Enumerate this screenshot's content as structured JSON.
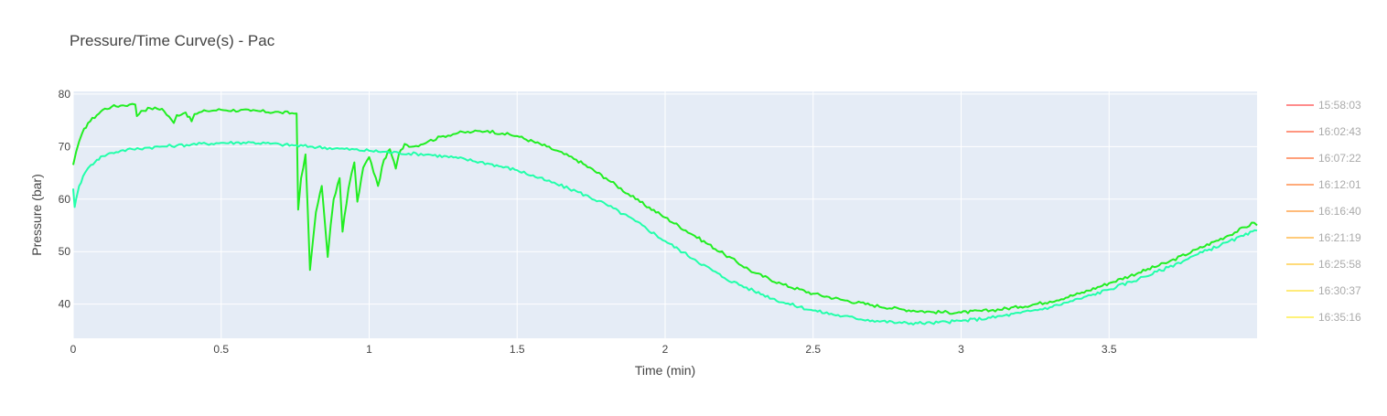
{
  "chart_data": {
    "type": "line",
    "title": "Pressure/Time Curve(s) - Pac",
    "xlabel": "Time (min)",
    "ylabel": "Pressure (bar)",
    "xlim": [
      0,
      4.0
    ],
    "ylim": [
      33.5,
      80.5
    ],
    "x_ticks": [
      0,
      0.5,
      1,
      1.5,
      2,
      2.5,
      3,
      3.5
    ],
    "x_tick_labels": [
      "0",
      "0.5",
      "1",
      "1.5",
      "2",
      "2.5",
      "3",
      "3.5"
    ],
    "y_ticks": [
      40,
      50,
      60,
      70,
      80
    ],
    "y_tick_labels": [
      "40",
      "50",
      "60",
      "70",
      "80"
    ],
    "grid": true,
    "legend_position": "right",
    "legend": [
      {
        "label": "15:58:03",
        "color": "#ff8c8c"
      },
      {
        "label": "16:02:43",
        "color": "#ff9680"
      },
      {
        "label": "16:07:22",
        "color": "#ffa07a"
      },
      {
        "label": "16:12:01",
        "color": "#ffab7a"
      },
      {
        "label": "16:16:40",
        "color": "#ffbb7a"
      },
      {
        "label": "16:21:19",
        "color": "#ffcb7a"
      },
      {
        "label": "16:25:58",
        "color": "#ffdb7a"
      },
      {
        "label": "16:30:37",
        "color": "#ffeb7a"
      },
      {
        "label": "16:35:16",
        "color": "#fff27a"
      }
    ],
    "series": [
      {
        "color": "#22ee22",
        "x": [
          0,
          0.01,
          0.03,
          0.05,
          0.08,
          0.1,
          0.13,
          0.16,
          0.19,
          0.21,
          0.215,
          0.23,
          0.26,
          0.3,
          0.34,
          0.35,
          0.38,
          0.4,
          0.41,
          0.45,
          0.5,
          0.6,
          0.7,
          0.755,
          0.76,
          0.765,
          0.77,
          0.785,
          0.8,
          0.81,
          0.82,
          0.84,
          0.86,
          0.87,
          0.88,
          0.9,
          0.91,
          0.93,
          0.95,
          0.96,
          0.98,
          1.0,
          1.03,
          1.05,
          1.07,
          1.09,
          1.1,
          1.12,
          1.15,
          1.2,
          1.25,
          1.3,
          1.35,
          1.4,
          1.45,
          1.5,
          1.6,
          1.7,
          1.8,
          1.9,
          2.0,
          2.1,
          2.2,
          2.3,
          2.4,
          2.5,
          2.6,
          2.7,
          2.8,
          2.9,
          3.0,
          3.1,
          3.2,
          3.3,
          3.4,
          3.5,
          3.6,
          3.7,
          3.8,
          3.9,
          3.99,
          4.0
        ],
        "y": [
          66.5,
          69,
          72.5,
          74.5,
          76,
          77,
          77.6,
          77.8,
          78,
          78,
          75.8,
          76.8,
          77.3,
          77.2,
          74.5,
          76,
          76.5,
          74.8,
          76.2,
          76.8,
          77,
          76.8,
          76.5,
          76.3,
          58,
          61,
          64,
          68.5,
          46.5,
          52,
          57.5,
          62.5,
          49,
          55,
          60,
          64,
          53.8,
          62,
          67,
          59.5,
          66,
          68,
          62.5,
          67.5,
          69.5,
          65.8,
          68.5,
          70.5,
          70,
          71,
          72,
          72.6,
          72.8,
          73,
          72.5,
          72,
          70,
          67.5,
          64,
          60,
          56.5,
          53,
          49.5,
          46,
          43.7,
          42,
          40.8,
          39.8,
          39,
          38.5,
          38.4,
          38.8,
          39.5,
          40.5,
          42,
          44,
          46,
          48,
          50.5,
          53,
          55.5,
          55
        ]
      },
      {
        "color": "#22ffaa",
        "x": [
          0,
          0.005,
          0.01,
          0.02,
          0.04,
          0.06,
          0.08,
          0.1,
          0.13,
          0.16,
          0.2,
          0.25,
          0.3,
          0.35,
          0.4,
          0.5,
          0.6,
          0.7,
          0.8,
          0.9,
          1.0,
          1.1,
          1.2,
          1.3,
          1.4,
          1.5,
          1.6,
          1.7,
          1.8,
          1.9,
          2.0,
          2.1,
          2.2,
          2.3,
          2.4,
          2.5,
          2.6,
          2.7,
          2.8,
          2.9,
          3.0,
          3.1,
          3.2,
          3.3,
          3.4,
          3.5,
          3.6,
          3.7,
          3.8,
          3.9,
          4.0
        ],
        "y": [
          62,
          58.5,
          60,
          62.5,
          65,
          66.5,
          67.5,
          68.2,
          68.8,
          69.2,
          69.5,
          69.8,
          70,
          70.2,
          70.4,
          70.7,
          70.8,
          70.4,
          70,
          69.6,
          69.2,
          68.8,
          68.5,
          67.8,
          66.8,
          65.5,
          63.5,
          61.5,
          59,
          55.8,
          52,
          48.5,
          45,
          42.5,
          40.3,
          38.8,
          37.7,
          36.9,
          36.4,
          36.4,
          36.8,
          37.4,
          38.3,
          39.4,
          41,
          42.8,
          44.8,
          47,
          49.5,
          51.8,
          54
        ]
      }
    ]
  }
}
